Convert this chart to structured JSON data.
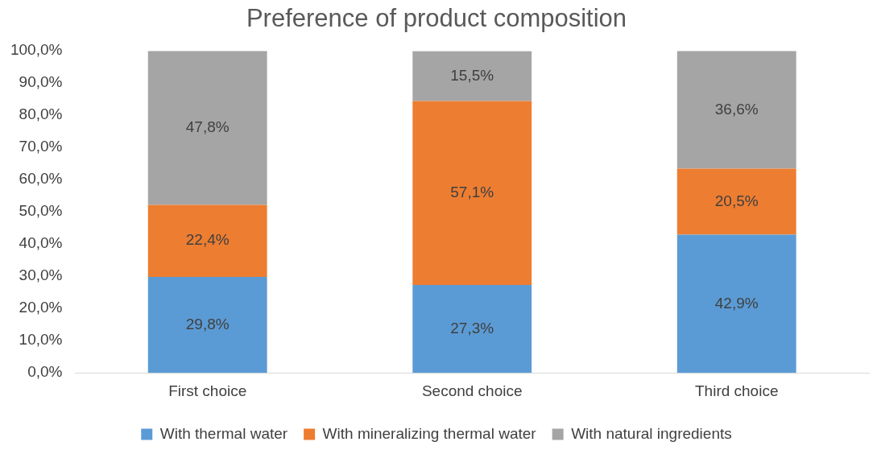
{
  "chart_data": {
    "type": "bar",
    "title": "Preference of product composition",
    "stacked": true,
    "legend": "bottom",
    "categories": [
      "First choice",
      "Second choice",
      "Third choice"
    ],
    "series": [
      {
        "name": "With thermal water",
        "color": "#5b9bd5",
        "values": [
          29.8,
          27.3,
          42.9
        ],
        "value_labels": [
          "29,8%",
          "27,3%",
          "42,9%"
        ]
      },
      {
        "name": "With mineralizing thermal water",
        "color": "#ed7d31",
        "values": [
          22.4,
          57.1,
          20.5
        ],
        "value_labels": [
          "22,4%",
          "57,1%",
          "20,5%"
        ]
      },
      {
        "name": "With natural ingredients",
        "color": "#a5a5a5",
        "values": [
          47.8,
          15.5,
          36.6
        ],
        "value_labels": [
          "47,8%",
          "15,5%",
          "36,6%"
        ]
      }
    ],
    "ylim": [
      0,
      100
    ],
    "yticks": [
      {
        "value": 0,
        "label": "0,0%"
      },
      {
        "value": 10,
        "label": "10,0%"
      },
      {
        "value": 20,
        "label": "20,0%"
      },
      {
        "value": 30,
        "label": "30,0%"
      },
      {
        "value": 40,
        "label": "40,0%"
      },
      {
        "value": 50,
        "label": "50,0%"
      },
      {
        "value": 60,
        "label": "60,0%"
      },
      {
        "value": 70,
        "label": "70,0%"
      },
      {
        "value": 80,
        "label": "80,0%"
      },
      {
        "value": 90,
        "label": "90,0%"
      },
      {
        "value": 100,
        "label": "100,0%"
      }
    ]
  }
}
